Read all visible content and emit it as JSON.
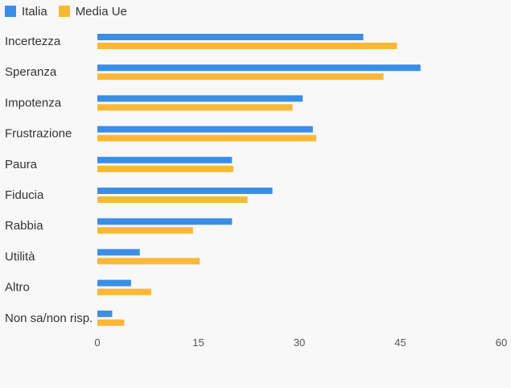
{
  "chart_data": {
    "type": "bar",
    "orientation": "horizontal",
    "categories": [
      "Incertezza",
      "Speranza",
      "Impotenza",
      "Frustrazione",
      "Paura",
      "Fiducia",
      "Rabbia",
      "Utilità",
      "Altro",
      "Non sa/non risp."
    ],
    "series": [
      {
        "name": "Italia",
        "color": "#3a8ee6",
        "values": [
          39.5,
          48,
          30.5,
          32,
          20,
          26,
          20,
          6.3,
          5,
          2.2
        ]
      },
      {
        "name": "Media Ue",
        "color": "#fbb836",
        "values": [
          44.5,
          42.5,
          29,
          32.5,
          20.2,
          22.3,
          14.2,
          15.2,
          8,
          4
        ]
      }
    ],
    "xlim": [
      0,
      60
    ],
    "xticks": [
      "0",
      "15",
      "30",
      "45",
      "60"
    ],
    "legend_position": "top-left",
    "grid": false
  }
}
